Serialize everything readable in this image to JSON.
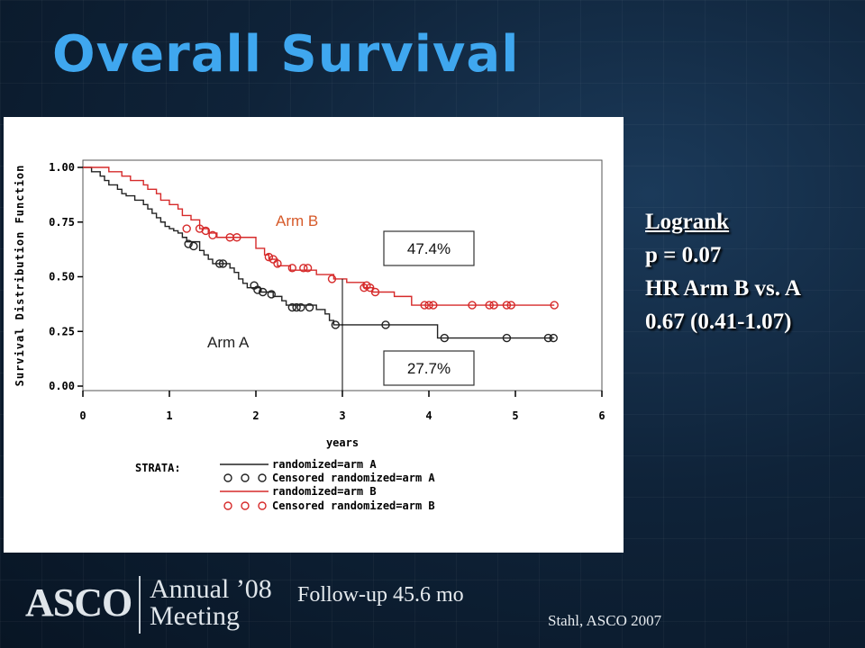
{
  "slide": {
    "title": "Overall Survival",
    "stats": {
      "test_label": "Logrank",
      "p_value": "p = 0.07",
      "hr_label": "HR Arm B vs. A",
      "hr_value": "0.67 (0.41-1.07)"
    },
    "followup": "Follow-up 45.6 mo",
    "citation": "Stahl, ASCO 2007",
    "logo": {
      "org": "ASCO",
      "event": "Annual ’08\nMeeting"
    }
  },
  "chart_data": {
    "type": "line",
    "subtype": "kaplan-meier",
    "ylabel": "Survival Distribution Function",
    "xlabel": "years",
    "xlim": [
      0,
      6
    ],
    "ylim": [
      0,
      1
    ],
    "x_ticks": [
      "0",
      "1",
      "2",
      "3",
      "4",
      "5",
      "6"
    ],
    "y_ticks": [
      "0.00",
      "0.25",
      "0.50",
      "0.75",
      "1.00"
    ],
    "grid": false,
    "series": [
      {
        "name": "randomized=arm A",
        "label": "Arm A",
        "color": "#222222",
        "steps": [
          [
            0,
            1.0
          ],
          [
            0.1,
            0.98
          ],
          [
            0.2,
            0.96
          ],
          [
            0.25,
            0.94
          ],
          [
            0.3,
            0.92
          ],
          [
            0.4,
            0.9
          ],
          [
            0.45,
            0.88
          ],
          [
            0.5,
            0.87
          ],
          [
            0.6,
            0.85
          ],
          [
            0.7,
            0.83
          ],
          [
            0.75,
            0.81
          ],
          [
            0.8,
            0.79
          ],
          [
            0.85,
            0.77
          ],
          [
            0.9,
            0.75
          ],
          [
            0.95,
            0.73
          ],
          [
            1.0,
            0.72
          ],
          [
            1.05,
            0.71
          ],
          [
            1.1,
            0.7
          ],
          [
            1.15,
            0.68
          ],
          [
            1.2,
            0.66
          ],
          [
            1.35,
            0.62
          ],
          [
            1.4,
            0.6
          ],
          [
            1.45,
            0.58
          ],
          [
            1.5,
            0.56
          ],
          [
            1.7,
            0.54
          ],
          [
            1.75,
            0.52
          ],
          [
            1.8,
            0.49
          ],
          [
            1.85,
            0.47
          ],
          [
            1.9,
            0.45
          ],
          [
            2.05,
            0.43
          ],
          [
            2.2,
            0.41
          ],
          [
            2.3,
            0.39
          ],
          [
            2.35,
            0.37
          ],
          [
            2.7,
            0.35
          ],
          [
            2.8,
            0.33
          ],
          [
            2.85,
            0.3
          ],
          [
            2.9,
            0.28
          ],
          [
            4.1,
            0.22
          ],
          [
            5.45,
            0.22
          ]
        ],
        "censored": [
          [
            1.22,
            0.65
          ],
          [
            1.28,
            0.64
          ],
          [
            1.58,
            0.56
          ],
          [
            1.62,
            0.56
          ],
          [
            1.98,
            0.46
          ],
          [
            2.02,
            0.44
          ],
          [
            2.08,
            0.43
          ],
          [
            2.18,
            0.42
          ],
          [
            2.42,
            0.36
          ],
          [
            2.47,
            0.36
          ],
          [
            2.52,
            0.36
          ],
          [
            2.62,
            0.36
          ],
          [
            2.92,
            0.28
          ],
          [
            3.5,
            0.28
          ],
          [
            4.18,
            0.22
          ],
          [
            4.9,
            0.22
          ],
          [
            5.38,
            0.22
          ],
          [
            5.44,
            0.22
          ]
        ],
        "color_label": "#222222"
      },
      {
        "name": "randomized=arm B",
        "label": "Arm B",
        "color": "#d62a2a",
        "steps": [
          [
            0,
            1.0
          ],
          [
            0.3,
            0.98
          ],
          [
            0.45,
            0.96
          ],
          [
            0.55,
            0.94
          ],
          [
            0.7,
            0.92
          ],
          [
            0.75,
            0.9
          ],
          [
            0.85,
            0.88
          ],
          [
            0.9,
            0.85
          ],
          [
            1.0,
            0.83
          ],
          [
            1.1,
            0.81
          ],
          [
            1.15,
            0.78
          ],
          [
            1.25,
            0.76
          ],
          [
            1.35,
            0.72
          ],
          [
            1.45,
            0.7
          ],
          [
            1.55,
            0.68
          ],
          [
            1.7,
            0.68
          ],
          [
            2.0,
            0.63
          ],
          [
            2.1,
            0.6
          ],
          [
            2.15,
            0.58
          ],
          [
            2.25,
            0.55
          ],
          [
            2.4,
            0.53
          ],
          [
            2.7,
            0.51
          ],
          [
            2.9,
            0.49
          ],
          [
            3.05,
            0.474
          ],
          [
            3.2,
            0.474
          ],
          [
            3.25,
            0.45
          ],
          [
            3.35,
            0.43
          ],
          [
            3.6,
            0.41
          ],
          [
            3.8,
            0.37
          ],
          [
            5.45,
            0.37
          ]
        ],
        "censored": [
          [
            1.2,
            0.72
          ],
          [
            1.35,
            0.72
          ],
          [
            1.42,
            0.71
          ],
          [
            1.5,
            0.69
          ],
          [
            1.7,
            0.68
          ],
          [
            1.78,
            0.68
          ],
          [
            2.15,
            0.59
          ],
          [
            2.2,
            0.58
          ],
          [
            2.25,
            0.56
          ],
          [
            2.42,
            0.54
          ],
          [
            2.55,
            0.54
          ],
          [
            2.6,
            0.54
          ],
          [
            2.88,
            0.49
          ],
          [
            3.25,
            0.45
          ],
          [
            3.28,
            0.46
          ],
          [
            3.32,
            0.45
          ],
          [
            3.38,
            0.43
          ],
          [
            3.95,
            0.37
          ],
          [
            4.0,
            0.37
          ],
          [
            4.05,
            0.37
          ],
          [
            4.5,
            0.37
          ],
          [
            4.7,
            0.37
          ],
          [
            4.75,
            0.37
          ],
          [
            4.9,
            0.37
          ],
          [
            4.95,
            0.37
          ],
          [
            5.45,
            0.37
          ]
        ],
        "color_label": "#d65a2a"
      }
    ],
    "annotations": [
      {
        "text": "47.4%",
        "x": 3,
        "y": 0.474
      },
      {
        "text": "27.7%",
        "x": 3,
        "y": 0.277
      }
    ],
    "reference_line_x": 3,
    "legend": {
      "title": "STRATA:",
      "entries": [
        "randomized=arm A",
        "Censored randomized=arm A",
        "randomized=arm B",
        "Censored randomized=arm B"
      ]
    }
  }
}
